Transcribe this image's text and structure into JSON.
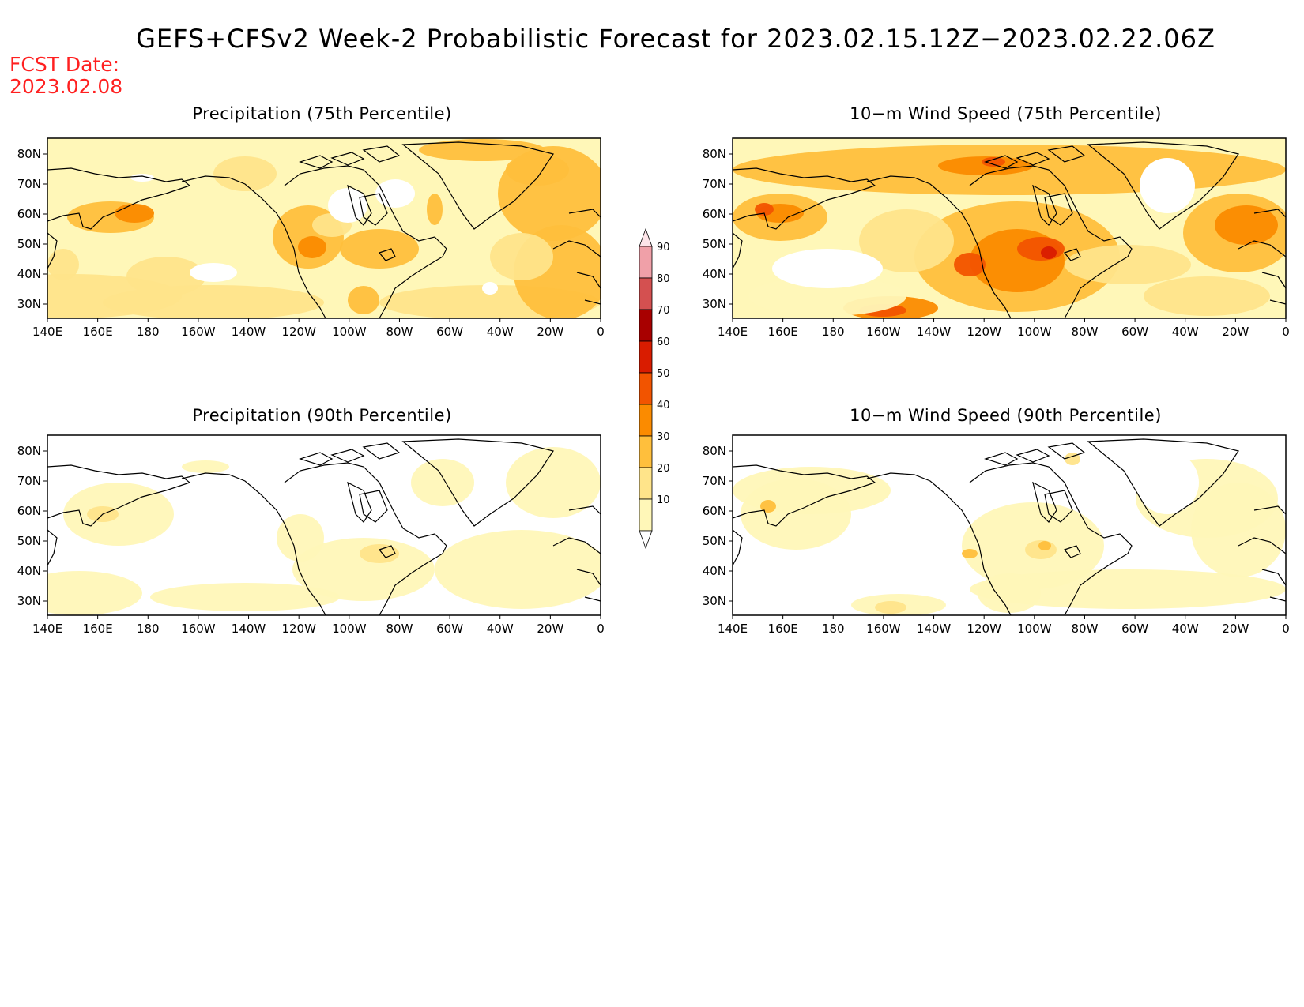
{
  "title": "GEFS+CFSv2 Week-2 Probabilistic Forecast for 2023.02.15.12Z−2023.02.22.06Z",
  "fcst_date_label": "FCST Date:",
  "fcst_date_value": "2023.02.08",
  "lon_labels": [
    "140E",
    "160E",
    "180",
    "160W",
    "140W",
    "120W",
    "100W",
    "80W",
    "60W",
    "40W",
    "20W",
    "0"
  ],
  "lat_labels": [
    "80N",
    "70N",
    "60N",
    "50N",
    "40N",
    "30N"
  ],
  "colorbar": {
    "levels": [
      "10",
      "20",
      "30",
      "40",
      "50",
      "60",
      "70",
      "80",
      "90"
    ],
    "colors": [
      "#ffffff",
      "#fff7b8",
      "#ffe48a",
      "#ffbf3c",
      "#fb8b00",
      "#f25400",
      "#d91c00",
      "#a80000",
      "#d45050",
      "#f0a0a8",
      "#fde4e8"
    ]
  },
  "panels": [
    {
      "id": "precip75",
      "title": "Precipitation (75th Percentile)"
    },
    {
      "id": "wind75",
      "title": "10−m Wind Speed (75th Percentile)"
    },
    {
      "id": "precip90",
      "title": "Precipitation (90th Percentile)"
    },
    {
      "id": "wind90",
      "title": "10−m Wind Speed (90th Percentile)"
    }
  ]
}
